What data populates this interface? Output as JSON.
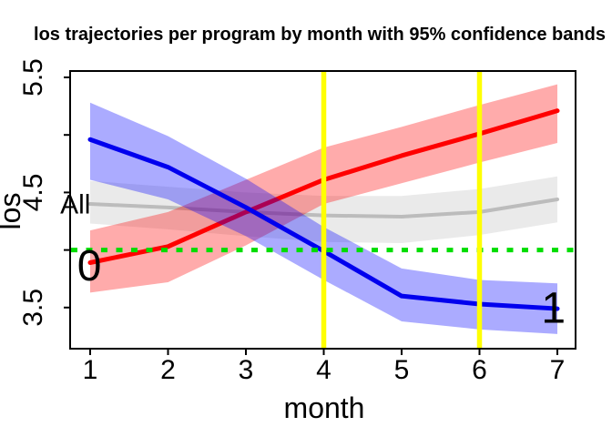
{
  "title": "los trajectories per program by month with 95% confidence bands",
  "chart_data": {
    "type": "line",
    "title": "los trajectories per program by month with 95% confidence bands",
    "xlabel": "month",
    "ylabel": "los",
    "x": [
      1,
      2,
      3,
      4,
      5,
      6,
      7
    ],
    "x_tick_labels": [
      "1",
      "2",
      "3",
      "4",
      "5",
      "6",
      "7"
    ],
    "y_ticks": [
      3.5,
      4.0,
      4.5,
      5.0,
      5.5
    ],
    "y_tick_labels": [
      "3.5",
      "",
      "4.5",
      "",
      "5.5"
    ],
    "xlim": [
      0.76,
      7.24
    ],
    "ylim": [
      3.14,
      5.56
    ],
    "grid": "off",
    "legend_position": "inline-labels",
    "series": [
      {
        "name": "All",
        "label": "All",
        "color": "#bcbcbc",
        "band_color": "rgba(128,128,128,0.17)",
        "line_width": 4,
        "values": [
          4.4,
          4.37,
          4.33,
          4.3,
          4.29,
          4.33,
          4.44
        ],
        "upper": [
          4.6,
          4.55,
          4.5,
          4.47,
          4.47,
          4.53,
          4.64
        ],
        "lower": [
          4.23,
          4.18,
          4.12,
          4.07,
          4.06,
          4.13,
          4.24
        ],
        "label_pos": {
          "x": 0.81,
          "y": 4.4
        },
        "label_font": 30
      },
      {
        "name": "0",
        "label": "0",
        "color": "#ff0000",
        "band_color": "rgba(255,0,0,0.33)",
        "line_width": 5,
        "values": [
          3.89,
          4.03,
          4.33,
          4.61,
          4.82,
          5.01,
          5.21
        ],
        "upper": [
          4.17,
          4.33,
          4.61,
          4.89,
          5.07,
          5.26,
          5.44
        ],
        "lower": [
          3.63,
          3.72,
          4.04,
          4.4,
          4.58,
          4.76,
          4.93
        ],
        "label_pos": {
          "x": 0.99,
          "y": 3.87
        },
        "label_font": 48
      },
      {
        "name": "1",
        "label": "1",
        "color": "#0000ee",
        "band_color": "rgba(0,0,255,0.33)",
        "line_width": 5,
        "values": [
          4.96,
          4.72,
          4.37,
          3.99,
          3.6,
          3.53,
          3.49
        ],
        "upper": [
          5.28,
          4.99,
          4.62,
          4.2,
          3.84,
          3.74,
          3.71
        ],
        "lower": [
          4.61,
          4.44,
          4.12,
          3.74,
          3.38,
          3.31,
          3.27
        ],
        "label_pos": {
          "x": 6.95,
          "y": 3.5
        },
        "label_font": 48
      }
    ],
    "h_reference_line": {
      "y": 4.0,
      "color": "#00dd00",
      "style": "dotted",
      "width": 5
    },
    "v_reference_lines": [
      {
        "x": 4,
        "color": "#ffff00",
        "width": 5.5
      },
      {
        "x": 6,
        "color": "#ffff00",
        "width": 5.5
      }
    ]
  }
}
